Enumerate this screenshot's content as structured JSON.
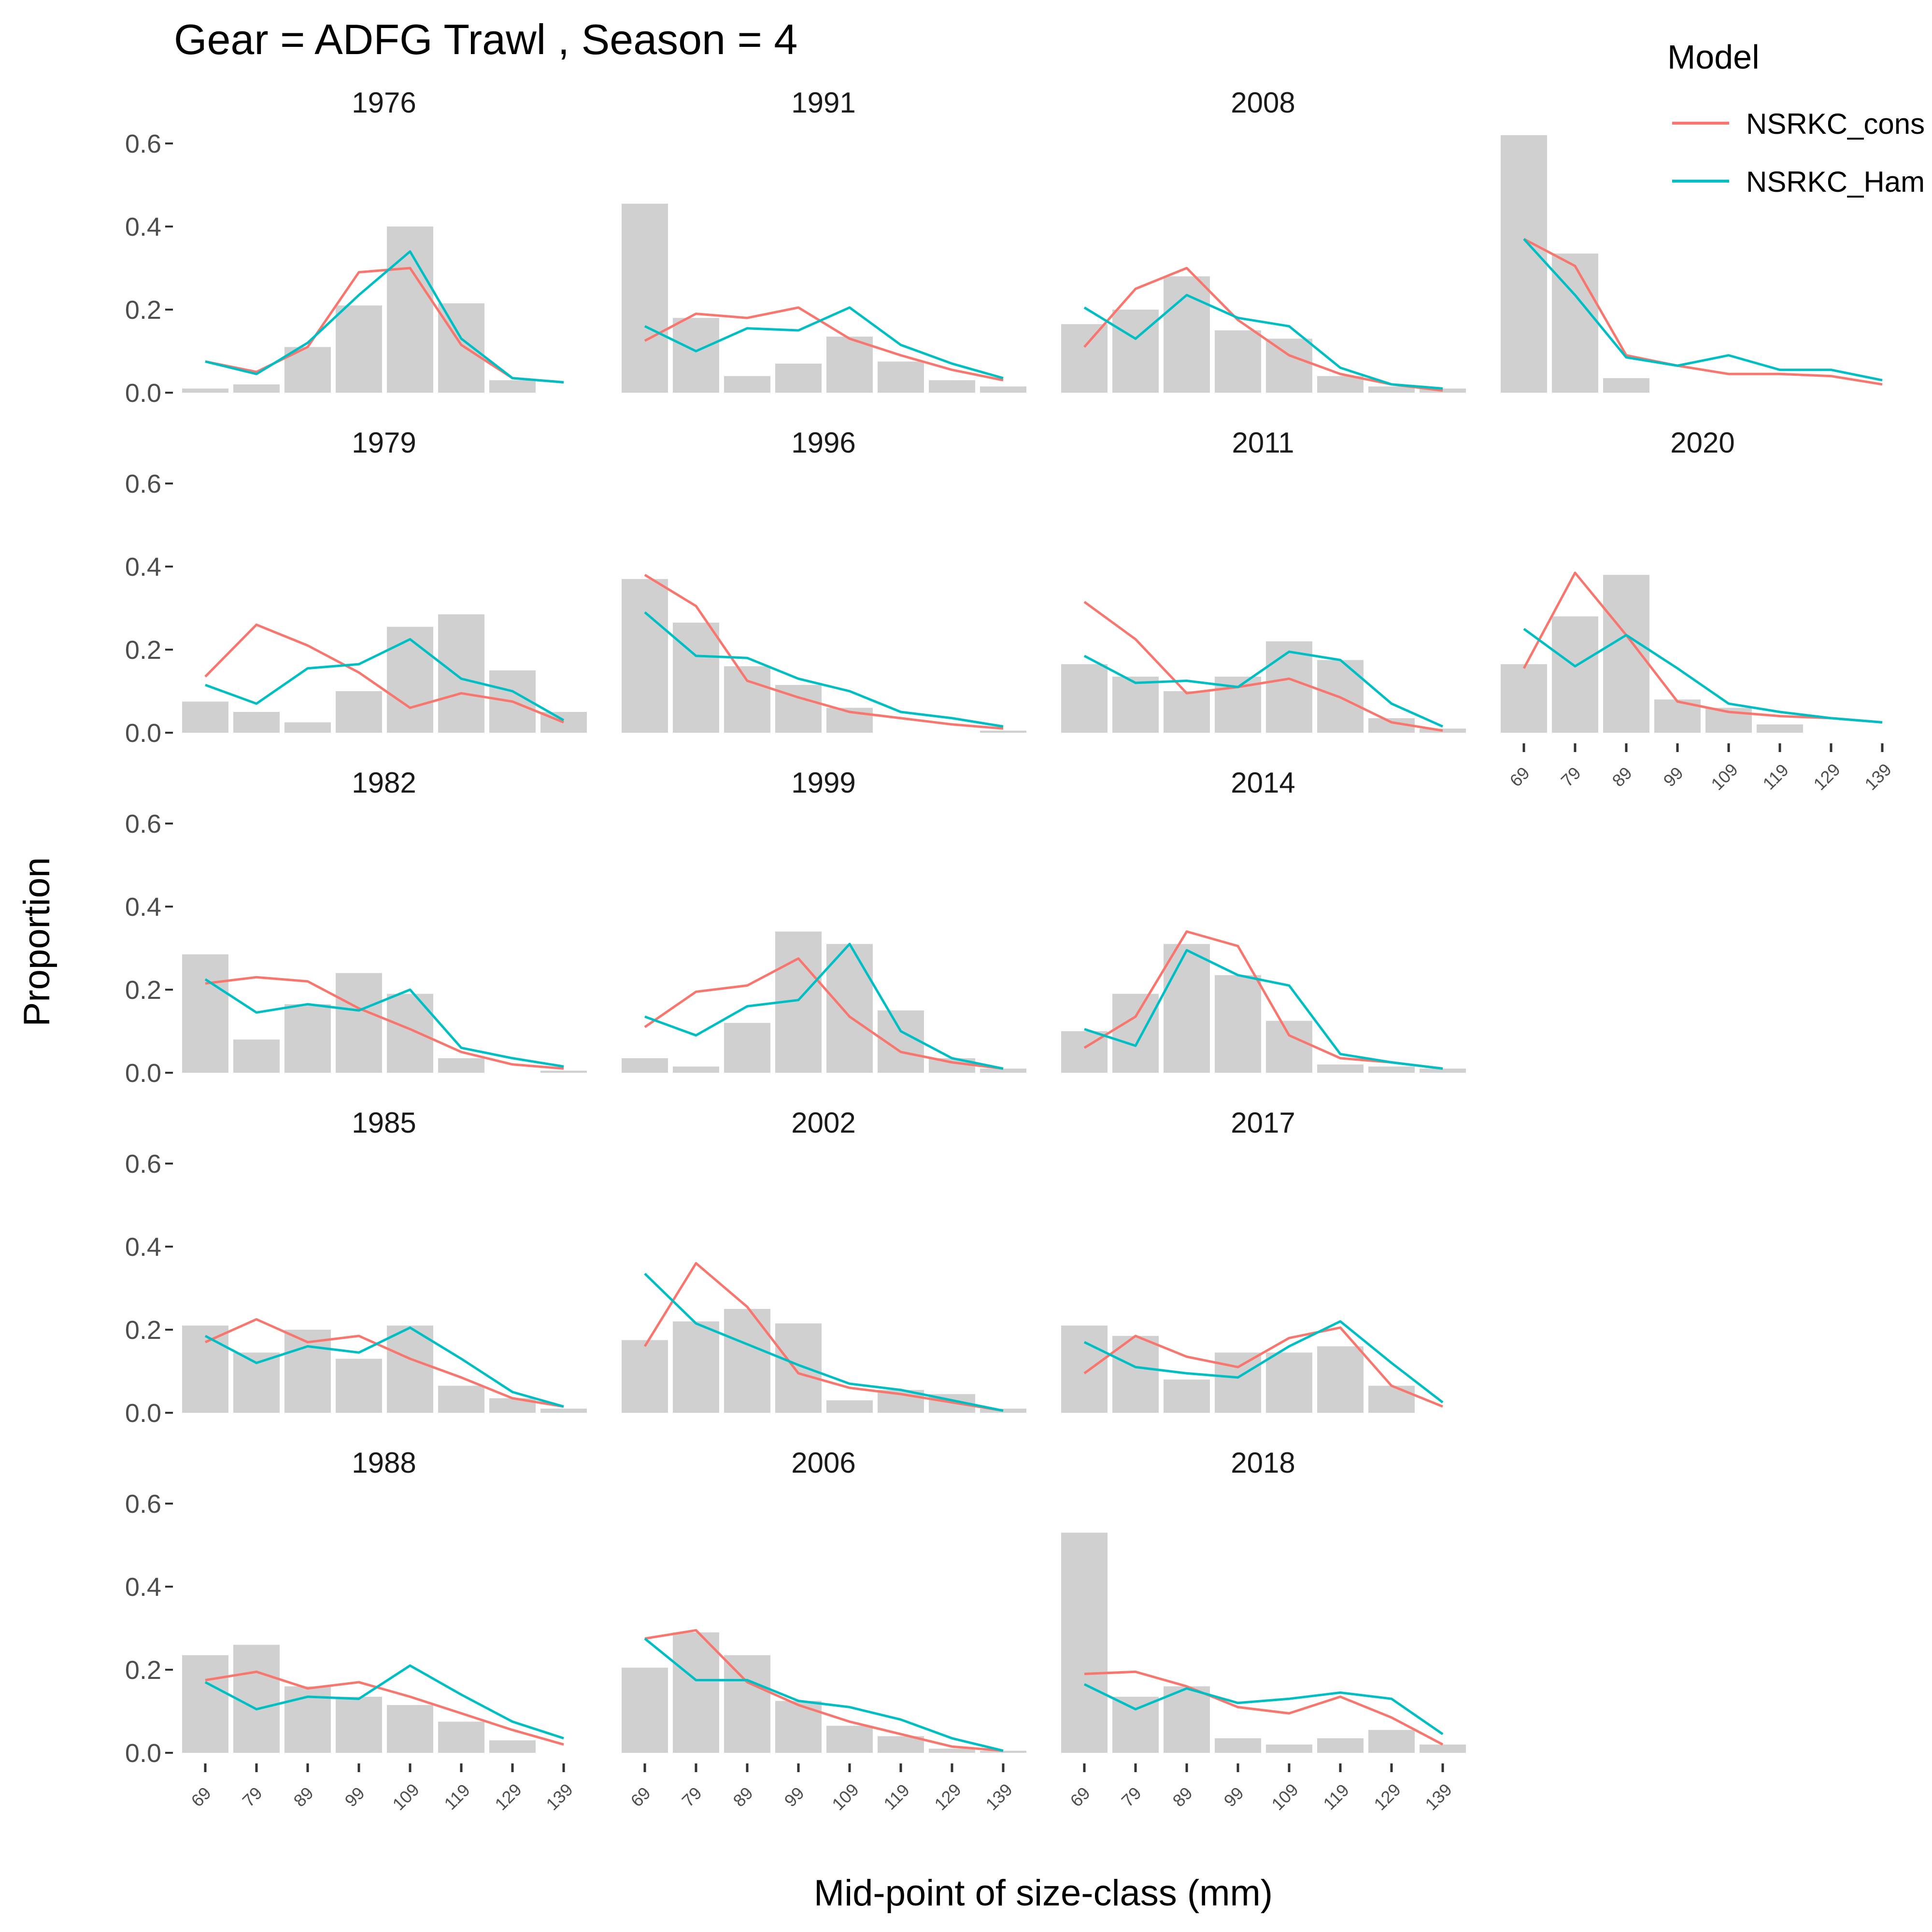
{
  "chart_data": {
    "type": "bar",
    "title": "Gear = ADFG Trawl , Season = 4",
    "xlabel": "Mid-point of size-class (mm)",
    "ylabel": "Proportion",
    "categories": [
      "69",
      "79",
      "89",
      "99",
      "109",
      "119",
      "129",
      "139"
    ],
    "ylim": [
      0,
      0.7
    ],
    "y_ticks": [
      "0.0",
      "0.2",
      "0.4",
      "0.6"
    ],
    "grid": false,
    "legend": {
      "title": "Model",
      "placement": "top-right",
      "entries": [
        {
          "label": "NSRKC_cons",
          "color": "#F8766D"
        },
        {
          "label": "NSRKC_Ham",
          "color": "#00BFC4"
        }
      ]
    },
    "colors": {
      "bar": "#D0D0D0",
      "cons": "#F8766D",
      "ham": "#00BFC4"
    },
    "panels": [
      {
        "year": "1976",
        "observed": [
          0.01,
          0.02,
          0.11,
          0.21,
          0.4,
          0.215,
          0.03,
          0.0
        ],
        "cons": [
          0.075,
          0.05,
          0.11,
          0.29,
          0.3,
          0.115,
          0.035,
          0.025
        ],
        "ham": [
          0.075,
          0.045,
          0.12,
          0.235,
          0.34,
          0.13,
          0.035,
          0.025
        ]
      },
      {
        "year": "1979",
        "observed": [
          0.075,
          0.05,
          0.025,
          0.1,
          0.255,
          0.285,
          0.15,
          0.05
        ],
        "cons": [
          0.135,
          0.26,
          0.21,
          0.145,
          0.06,
          0.095,
          0.075,
          0.025
        ],
        "ham": [
          0.115,
          0.07,
          0.155,
          0.165,
          0.225,
          0.13,
          0.1,
          0.03
        ]
      },
      {
        "year": "1982",
        "observed": [
          0.285,
          0.08,
          0.165,
          0.24,
          0.19,
          0.035,
          0.0,
          0.005
        ],
        "cons": [
          0.215,
          0.23,
          0.22,
          0.155,
          0.105,
          0.05,
          0.02,
          0.01
        ],
        "ham": [
          0.225,
          0.145,
          0.165,
          0.15,
          0.2,
          0.06,
          0.035,
          0.015
        ]
      },
      {
        "year": "1985",
        "observed": [
          0.21,
          0.145,
          0.2,
          0.13,
          0.21,
          0.065,
          0.035,
          0.01
        ],
        "cons": [
          0.17,
          0.225,
          0.17,
          0.185,
          0.13,
          0.085,
          0.035,
          0.015
        ],
        "ham": [
          0.185,
          0.12,
          0.16,
          0.145,
          0.205,
          0.13,
          0.05,
          0.015
        ]
      },
      {
        "year": "1988",
        "observed": [
          0.235,
          0.26,
          0.16,
          0.135,
          0.115,
          0.075,
          0.03,
          0.0
        ],
        "cons": [
          0.175,
          0.195,
          0.155,
          0.17,
          0.135,
          0.095,
          0.055,
          0.02
        ],
        "ham": [
          0.17,
          0.105,
          0.135,
          0.13,
          0.21,
          0.14,
          0.075,
          0.035
        ]
      },
      {
        "year": "1991",
        "observed": [
          0.455,
          0.18,
          0.04,
          0.07,
          0.135,
          0.075,
          0.03,
          0.015
        ],
        "cons": [
          0.125,
          0.19,
          0.18,
          0.205,
          0.13,
          0.09,
          0.055,
          0.03
        ],
        "ham": [
          0.16,
          0.1,
          0.155,
          0.15,
          0.205,
          0.115,
          0.07,
          0.035
        ]
      },
      {
        "year": "1996",
        "observed": [
          0.37,
          0.265,
          0.16,
          0.115,
          0.06,
          0.0,
          0.0,
          0.005
        ],
        "cons": [
          0.38,
          0.305,
          0.125,
          0.085,
          0.05,
          0.035,
          0.02,
          0.01
        ],
        "ham": [
          0.29,
          0.185,
          0.18,
          0.13,
          0.1,
          0.05,
          0.035,
          0.015
        ]
      },
      {
        "year": "1999",
        "observed": [
          0.035,
          0.015,
          0.12,
          0.34,
          0.31,
          0.15,
          0.035,
          0.01
        ],
        "cons": [
          0.11,
          0.195,
          0.21,
          0.275,
          0.135,
          0.05,
          0.025,
          0.01
        ],
        "ham": [
          0.135,
          0.09,
          0.16,
          0.175,
          0.31,
          0.1,
          0.035,
          0.01
        ]
      },
      {
        "year": "2002",
        "observed": [
          0.175,
          0.22,
          0.25,
          0.215,
          0.03,
          0.055,
          0.045,
          0.01
        ],
        "cons": [
          0.16,
          0.36,
          0.255,
          0.095,
          0.06,
          0.045,
          0.025,
          0.005
        ],
        "ham": [
          0.335,
          0.215,
          0.165,
          0.115,
          0.07,
          0.055,
          0.03,
          0.005
        ]
      },
      {
        "year": "2006",
        "observed": [
          0.205,
          0.29,
          0.235,
          0.125,
          0.065,
          0.04,
          0.01,
          0.005
        ],
        "cons": [
          0.275,
          0.295,
          0.17,
          0.115,
          0.075,
          0.045,
          0.015,
          0.005
        ],
        "ham": [
          0.275,
          0.175,
          0.175,
          0.125,
          0.11,
          0.08,
          0.035,
          0.005
        ]
      },
      {
        "year": "2008",
        "observed": [
          0.165,
          0.2,
          0.28,
          0.15,
          0.13,
          0.04,
          0.015,
          0.01
        ],
        "cons": [
          0.11,
          0.25,
          0.3,
          0.175,
          0.09,
          0.045,
          0.02,
          0.005
        ],
        "ham": [
          0.205,
          0.13,
          0.235,
          0.18,
          0.16,
          0.06,
          0.02,
          0.01
        ]
      },
      {
        "year": "2011",
        "observed": [
          0.165,
          0.135,
          0.1,
          0.135,
          0.22,
          0.175,
          0.035,
          0.01
        ],
        "cons": [
          0.315,
          0.225,
          0.095,
          0.11,
          0.13,
          0.085,
          0.025,
          0.005
        ],
        "ham": [
          0.185,
          0.12,
          0.125,
          0.11,
          0.195,
          0.175,
          0.07,
          0.015
        ]
      },
      {
        "year": "2014",
        "observed": [
          0.1,
          0.19,
          0.31,
          0.235,
          0.125,
          0.02,
          0.015,
          0.01
        ],
        "cons": [
          0.06,
          0.135,
          0.34,
          0.305,
          0.09,
          0.035,
          0.025,
          0.01
        ],
        "ham": [
          0.105,
          0.065,
          0.295,
          0.235,
          0.21,
          0.045,
          0.025,
          0.01
        ]
      },
      {
        "year": "2017",
        "observed": [
          0.21,
          0.185,
          0.08,
          0.145,
          0.145,
          0.16,
          0.065,
          0.0
        ],
        "cons": [
          0.095,
          0.185,
          0.135,
          0.11,
          0.18,
          0.205,
          0.065,
          0.015
        ],
        "ham": [
          0.17,
          0.11,
          0.095,
          0.085,
          0.16,
          0.22,
          0.12,
          0.025
        ]
      },
      {
        "year": "2018",
        "observed": [
          0.53,
          0.135,
          0.16,
          0.035,
          0.02,
          0.035,
          0.055,
          0.02
        ],
        "cons": [
          0.19,
          0.195,
          0.16,
          0.11,
          0.095,
          0.135,
          0.085,
          0.02
        ],
        "ham": [
          0.165,
          0.105,
          0.155,
          0.12,
          0.13,
          0.145,
          0.13,
          0.045
        ]
      },
      {
        "year": "2020",
        "observed": [
          0.165,
          0.28,
          0.38,
          0.08,
          0.06,
          0.02,
          0.0,
          0.0
        ],
        "cons": [
          0.155,
          0.385,
          0.235,
          0.075,
          0.05,
          0.04,
          0.035,
          0.025
        ],
        "ham": [
          0.25,
          0.16,
          0.235,
          0.155,
          0.07,
          0.05,
          0.035,
          0.025
        ]
      },
      {
        "year": "",
        "observed": [
          0.62,
          0.335,
          0.035,
          0.0,
          0.0,
          0.0,
          0.0,
          0.0
        ],
        "cons": [
          0.37,
          0.305,
          0.09,
          0.065,
          0.045,
          0.045,
          0.04,
          0.02
        ],
        "ham": [
          0.37,
          0.235,
          0.085,
          0.065,
          0.09,
          0.055,
          0.055,
          0.03
        ]
      }
    ]
  }
}
